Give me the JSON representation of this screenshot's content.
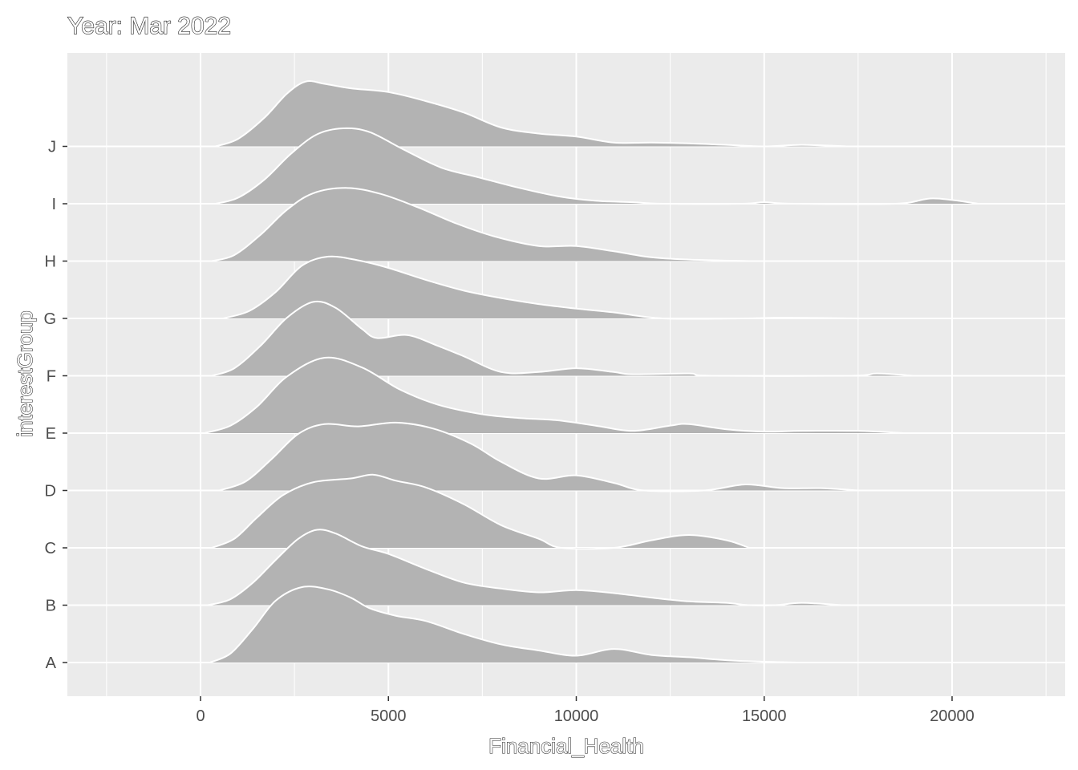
{
  "chart_data": {
    "type": "ridgeline",
    "title": "Year: Mar 2022",
    "xlabel": "Financial_Health",
    "ylabel": "interestGroup",
    "xlim": [
      -2500,
      23000
    ],
    "x_ticks": [
      0,
      5000,
      10000,
      15000,
      20000
    ],
    "x_tick_labels": [
      "0",
      "5000",
      "10000",
      "15000",
      "20000"
    ],
    "categories": [
      "A",
      "B",
      "C",
      "D",
      "E",
      "F",
      "G",
      "H",
      "I",
      "J"
    ],
    "grid": true,
    "fill_color": "#b3b3b3",
    "outline_color": "#ffffff",
    "panel_color": "#ebebeb",
    "series": [
      {
        "category": "A",
        "density": [
          [
            250,
            0
          ],
          [
            800,
            0.12
          ],
          [
            1400,
            0.45
          ],
          [
            2000,
            0.82
          ],
          [
            2700,
            1.0
          ],
          [
            3400,
            0.97
          ],
          [
            4000,
            0.86
          ],
          [
            4500,
            0.72
          ],
          [
            5200,
            0.62
          ],
          [
            6000,
            0.55
          ],
          [
            7000,
            0.38
          ],
          [
            8000,
            0.24
          ],
          [
            9000,
            0.16
          ],
          [
            10000,
            0.09
          ],
          [
            11000,
            0.18
          ],
          [
            12000,
            0.1
          ],
          [
            13000,
            0.07
          ],
          [
            14000,
            0.03
          ],
          [
            15000,
            0.01
          ],
          [
            16000,
            0
          ]
        ]
      },
      {
        "category": "B",
        "density": [
          [
            200,
            0
          ],
          [
            800,
            0.08
          ],
          [
            1400,
            0.3
          ],
          [
            2000,
            0.6
          ],
          [
            2600,
            0.88
          ],
          [
            3100,
            1.0
          ],
          [
            3600,
            0.95
          ],
          [
            4300,
            0.78
          ],
          [
            5000,
            0.68
          ],
          [
            6000,
            0.48
          ],
          [
            7000,
            0.3
          ],
          [
            8000,
            0.22
          ],
          [
            9000,
            0.17
          ],
          [
            10000,
            0.2
          ],
          [
            11000,
            0.16
          ],
          [
            12000,
            0.1
          ],
          [
            13000,
            0.05
          ],
          [
            14000,
            0.03
          ],
          [
            14600,
            0
          ],
          [
            15300,
            0
          ],
          [
            16000,
            0.03
          ],
          [
            17100,
            0
          ]
        ]
      },
      {
        "category": "C",
        "density": [
          [
            300,
            0
          ],
          [
            900,
            0.12
          ],
          [
            1500,
            0.4
          ],
          [
            2200,
            0.7
          ],
          [
            3000,
            0.87
          ],
          [
            4000,
            0.92
          ],
          [
            4600,
            0.97
          ],
          [
            5200,
            0.89
          ],
          [
            6000,
            0.8
          ],
          [
            7000,
            0.58
          ],
          [
            8000,
            0.3
          ],
          [
            9000,
            0.12
          ],
          [
            9600,
            0
          ],
          [
            11000,
            0
          ],
          [
            12000,
            0.1
          ],
          [
            13000,
            0.17
          ],
          [
            14000,
            0.1
          ],
          [
            14600,
            0
          ]
        ]
      },
      {
        "category": "D",
        "density": [
          [
            500,
            0
          ],
          [
            1200,
            0.12
          ],
          [
            1900,
            0.42
          ],
          [
            2600,
            0.75
          ],
          [
            3300,
            0.88
          ],
          [
            4200,
            0.85
          ],
          [
            5200,
            0.9
          ],
          [
            6200,
            0.82
          ],
          [
            7200,
            0.62
          ],
          [
            8000,
            0.38
          ],
          [
            9000,
            0.16
          ],
          [
            10000,
            0.2
          ],
          [
            11000,
            0.1
          ],
          [
            11800,
            0
          ],
          [
            13400,
            0
          ],
          [
            14500,
            0.08
          ],
          [
            15500,
            0.03
          ],
          [
            16500,
            0.03
          ],
          [
            17500,
            0
          ]
        ]
      },
      {
        "category": "E",
        "density": [
          [
            100,
            0
          ],
          [
            800,
            0.1
          ],
          [
            1500,
            0.35
          ],
          [
            2300,
            0.75
          ],
          [
            3300,
            1.0
          ],
          [
            4300,
            0.87
          ],
          [
            5300,
            0.58
          ],
          [
            6300,
            0.38
          ],
          [
            7500,
            0.25
          ],
          [
            8500,
            0.2
          ],
          [
            9500,
            0.17
          ],
          [
            10500,
            0.1
          ],
          [
            11500,
            0.03
          ],
          [
            12500,
            0.1
          ],
          [
            13000,
            0.12
          ],
          [
            14000,
            0.05
          ],
          [
            15000,
            0.02
          ],
          [
            16000,
            0.03
          ],
          [
            17500,
            0.03
          ],
          [
            18700,
            0
          ]
        ]
      },
      {
        "category": "F",
        "density": [
          [
            300,
            0
          ],
          [
            900,
            0.1
          ],
          [
            1600,
            0.4
          ],
          [
            2300,
            0.77
          ],
          [
            3000,
            0.98
          ],
          [
            3600,
            0.9
          ],
          [
            4300,
            0.62
          ],
          [
            4700,
            0.5
          ],
          [
            5500,
            0.54
          ],
          [
            6300,
            0.4
          ],
          [
            7000,
            0.26
          ],
          [
            8000,
            0.05
          ],
          [
            9000,
            0.05
          ],
          [
            10000,
            0.1
          ],
          [
            11000,
            0.05
          ],
          [
            11500,
            0.02
          ],
          [
            13000,
            0.03
          ],
          [
            13600,
            0
          ],
          [
            17300,
            0
          ],
          [
            18000,
            0.03
          ],
          [
            19000,
            0
          ]
        ]
      },
      {
        "category": "G",
        "density": [
          [
            600,
            0
          ],
          [
            1300,
            0.1
          ],
          [
            2000,
            0.35
          ],
          [
            2700,
            0.7
          ],
          [
            3400,
            0.82
          ],
          [
            4200,
            0.77
          ],
          [
            5000,
            0.67
          ],
          [
            6000,
            0.51
          ],
          [
            7000,
            0.37
          ],
          [
            8000,
            0.27
          ],
          [
            9000,
            0.19
          ],
          [
            10000,
            0.13
          ],
          [
            11000,
            0.08
          ],
          [
            12300,
            0
          ],
          [
            14400,
            0
          ],
          [
            15500,
            0.01
          ],
          [
            17500,
            0
          ]
        ]
      },
      {
        "category": "H",
        "density": [
          [
            300,
            0
          ],
          [
            900,
            0.08
          ],
          [
            1600,
            0.35
          ],
          [
            2300,
            0.68
          ],
          [
            3000,
            0.9
          ],
          [
            3900,
            0.97
          ],
          [
            4800,
            0.89
          ],
          [
            5800,
            0.71
          ],
          [
            6800,
            0.5
          ],
          [
            7800,
            0.33
          ],
          [
            9000,
            0.2
          ],
          [
            10000,
            0.2
          ],
          [
            11000,
            0.13
          ],
          [
            12000,
            0.05
          ],
          [
            13000,
            0.02
          ],
          [
            14600,
            0
          ]
        ]
      },
      {
        "category": "I",
        "density": [
          [
            400,
            0
          ],
          [
            1000,
            0.08
          ],
          [
            1700,
            0.32
          ],
          [
            2400,
            0.66
          ],
          [
            3100,
            0.92
          ],
          [
            3800,
            1.0
          ],
          [
            4500,
            0.95
          ],
          [
            5400,
            0.72
          ],
          [
            6400,
            0.48
          ],
          [
            7400,
            0.35
          ],
          [
            8400,
            0.22
          ],
          [
            9500,
            0.1
          ],
          [
            10500,
            0.04
          ],
          [
            11500,
            0.02
          ],
          [
            12300,
            0
          ],
          [
            14400,
            0
          ],
          [
            15000,
            0.02
          ],
          [
            15800,
            0
          ],
          [
            18500,
            0
          ],
          [
            19500,
            0.07
          ],
          [
            20700,
            0
          ]
        ]
      },
      {
        "category": "J",
        "density": [
          [
            400,
            0
          ],
          [
            1000,
            0.1
          ],
          [
            1700,
            0.38
          ],
          [
            2300,
            0.7
          ],
          [
            2800,
            0.86
          ],
          [
            3300,
            0.83
          ],
          [
            4000,
            0.77
          ],
          [
            5000,
            0.72
          ],
          [
            6000,
            0.6
          ],
          [
            7000,
            0.45
          ],
          [
            8000,
            0.25
          ],
          [
            9000,
            0.17
          ],
          [
            10000,
            0.13
          ],
          [
            11000,
            0.05
          ],
          [
            12000,
            0.05
          ],
          [
            13000,
            0.04
          ],
          [
            14000,
            0.02
          ],
          [
            15000,
            0
          ],
          [
            16000,
            0.02
          ],
          [
            17200,
            0
          ]
        ]
      }
    ]
  }
}
